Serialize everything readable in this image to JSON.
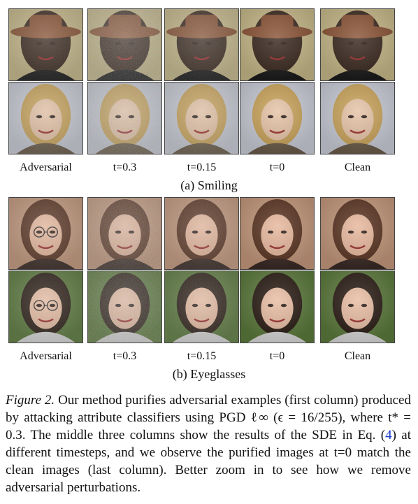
{
  "figure": {
    "column_labels": [
      "Adversarial",
      "t=0.3",
      "t=0.15",
      "t=0",
      "Clean"
    ],
    "panels": [
      {
        "caption": "(a) Smiling",
        "rows": [
          {
            "subject": "man-with-brown-hat",
            "colors": {
              "bg": "#c7b98a",
              "skin": "#3b2a20",
              "hair": "#3b2a20",
              "hat": "#8a5436",
              "shirt": "#1c1c1c"
            }
          },
          {
            "subject": "blonde-woman",
            "colors": {
              "bg": "#c9ccd7",
              "skin": "#e6c3a6",
              "hair": "#c9a35a",
              "hat": "",
              "shirt": "#6b5c4a"
            }
          }
        ]
      },
      {
        "caption": "(b) Eyeglasses",
        "rows": [
          {
            "subject": "dark-haired-woman",
            "colors": {
              "bg": "#c4987c",
              "skin": "#e7b79c",
              "hair": "#5a3422",
              "hat": "",
              "shirt": "#3a2a25"
            }
          },
          {
            "subject": "curly-haired-boy",
            "colors": {
              "bg": "#5c7a3d",
              "skin": "#e8bca2",
              "hair": "#2a1c14",
              "hat": "",
              "shirt": "#d9d9d9"
            }
          }
        ]
      }
    ],
    "caption": {
      "label": "Figure 2.",
      "text_1": " Our method purifies adversarial examples (first column) produced by attacking attribute classifiers using PGD ℓ∞ (ϵ = 16/255), where t* = 0.3. The middle three columns show the results of the SDE in Eq. (",
      "eq_ref": "4",
      "text_2": ") at different timesteps, and we observe the purified images at t=0 match the clean images (last column). Better zoom in to see how we remove adversarial perturbations."
    }
  }
}
